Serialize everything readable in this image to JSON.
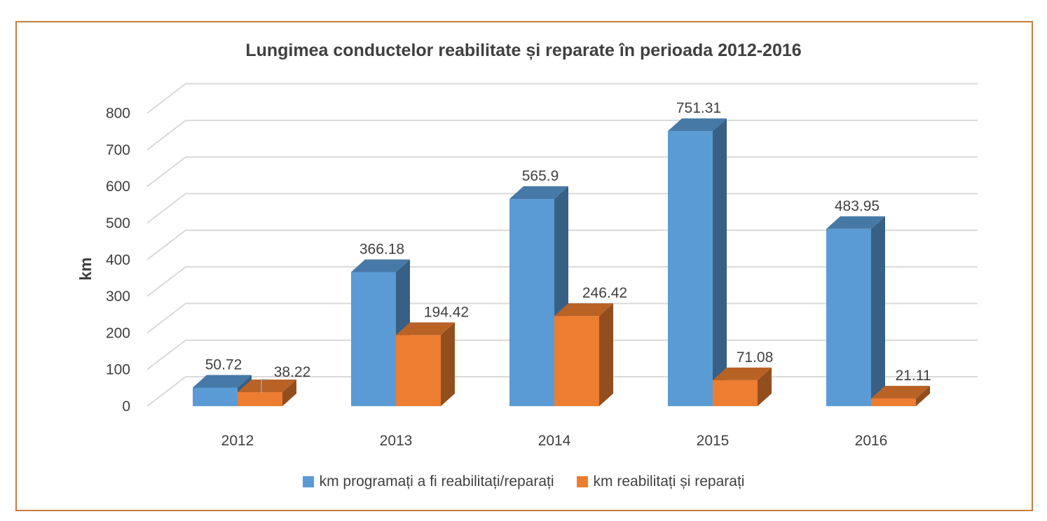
{
  "chart_data": {
    "type": "bar",
    "title": "Lungimea conductelor reabilitate și reparate în perioada 2012-2016",
    "ylabel": "km",
    "xlabel": "",
    "ylim": [
      0,
      800
    ],
    "yticks": [
      0,
      100,
      200,
      300,
      400,
      500,
      600,
      700,
      800
    ],
    "categories": [
      "2012",
      "2013",
      "2014",
      "2015",
      "2016"
    ],
    "series": [
      {
        "name": "km programați a fi reabilitați/reparați",
        "values": [
          50.72,
          366.18,
          565.9,
          751.31,
          483.95
        ],
        "labels": [
          "50.72",
          "366.18",
          "565.9",
          "751.31",
          "483.95"
        ],
        "color": "#5B9BD5"
      },
      {
        "name": "km reabilitați și reparați",
        "values": [
          38.22,
          194.42,
          246.42,
          71.08,
          21.11
        ],
        "labels": [
          "38.22",
          "194.42",
          "246.42",
          "71.08",
          "21.11"
        ],
        "color": "#ED7D31"
      }
    ],
    "grid": true,
    "legend": "bottom",
    "style": "3d-clustered-column"
  },
  "colors": {
    "border": "#C87C3A",
    "grid": "#D9D9D9",
    "text": "#404040"
  }
}
